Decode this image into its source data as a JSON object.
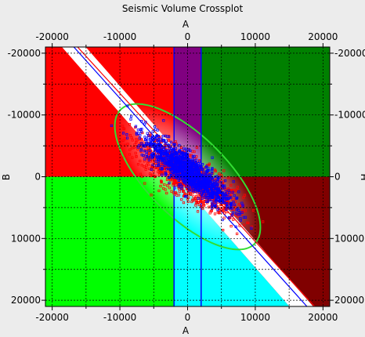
{
  "window": {
    "title": "Seismic Volume Crossplot"
  },
  "chart_data": {
    "type": "scatter",
    "title": "Seismic Volume Crossplot",
    "xlabel": "A",
    "ylabel": "B",
    "right_axis_label_fragment": "H",
    "xlim": [
      -21000,
      21000
    ],
    "ylim": [
      -21000,
      21000
    ],
    "xticks": [
      -20000,
      -10000,
      0,
      10000,
      20000
    ],
    "yticks": [
      -20000,
      -10000,
      0,
      10000,
      20000
    ],
    "xtick_labels_top": [
      "-20000",
      "-10000",
      "0",
      "10000",
      "20000"
    ],
    "xtick_labels_bottom": [
      "-20000",
      "-10000",
      "0",
      "10000",
      "20000"
    ],
    "ytick_labels_left": [
      "20000",
      "10000",
      "0",
      "-10000",
      "-20000"
    ],
    "ytick_labels_right": [
      "20000",
      "10000",
      "0",
      "-10000",
      "-20000"
    ],
    "minor_xticks": [
      -15000,
      -5000,
      5000,
      15000
    ],
    "minor_yticks": [
      -15000,
      -5000,
      5000,
      15000
    ],
    "grid": true,
    "background_zones": [
      {
        "name": "upper-left",
        "color": "#ff0000"
      },
      {
        "name": "upper-center",
        "color": "#000080"
      },
      {
        "name": "upper-right",
        "color": "#008000"
      },
      {
        "name": "lower-left",
        "color": "#00ff00"
      },
      {
        "name": "lower-right",
        "color": "#800000"
      },
      {
        "name": "center-band-upper",
        "color": "#800080"
      },
      {
        "name": "center-band-lower",
        "color": "#ff00ff"
      },
      {
        "name": "lower-cyan",
        "color": "#00ffff"
      }
    ],
    "trend_band": {
      "slope": -1.25,
      "intercept_upper": 2200,
      "intercept_lower": -2200,
      "color": "#ffffff"
    },
    "trend_lines": [
      {
        "color": "#0000ff",
        "slope": -1.22,
        "intercept": 500
      },
      {
        "color": "#ff0000",
        "slope": -1.2,
        "intercept": 1500
      }
    ],
    "vertical_band": {
      "x_min": -2000,
      "x_max": 2000,
      "color": "#0000ff"
    },
    "ellipse": {
      "center": [
        0,
        0
      ],
      "semi_major": 14000,
      "semi_minor": 6500,
      "angle_deg": -45,
      "color": "#33dd33"
    },
    "series": [
      {
        "name": "",
        "color": "#ff0000",
        "n_points": 1400,
        "center": [
          0,
          0
        ],
        "sd_major": 4200,
        "sd_minor": 1400,
        "angle_deg": -38
      },
      {
        "name": "",
        "color": "#0000ff",
        "n_points": 1300,
        "center": [
          0,
          1000
        ],
        "sd_major": 4000,
        "sd_minor": 1100,
        "angle_deg": -40
      }
    ]
  }
}
